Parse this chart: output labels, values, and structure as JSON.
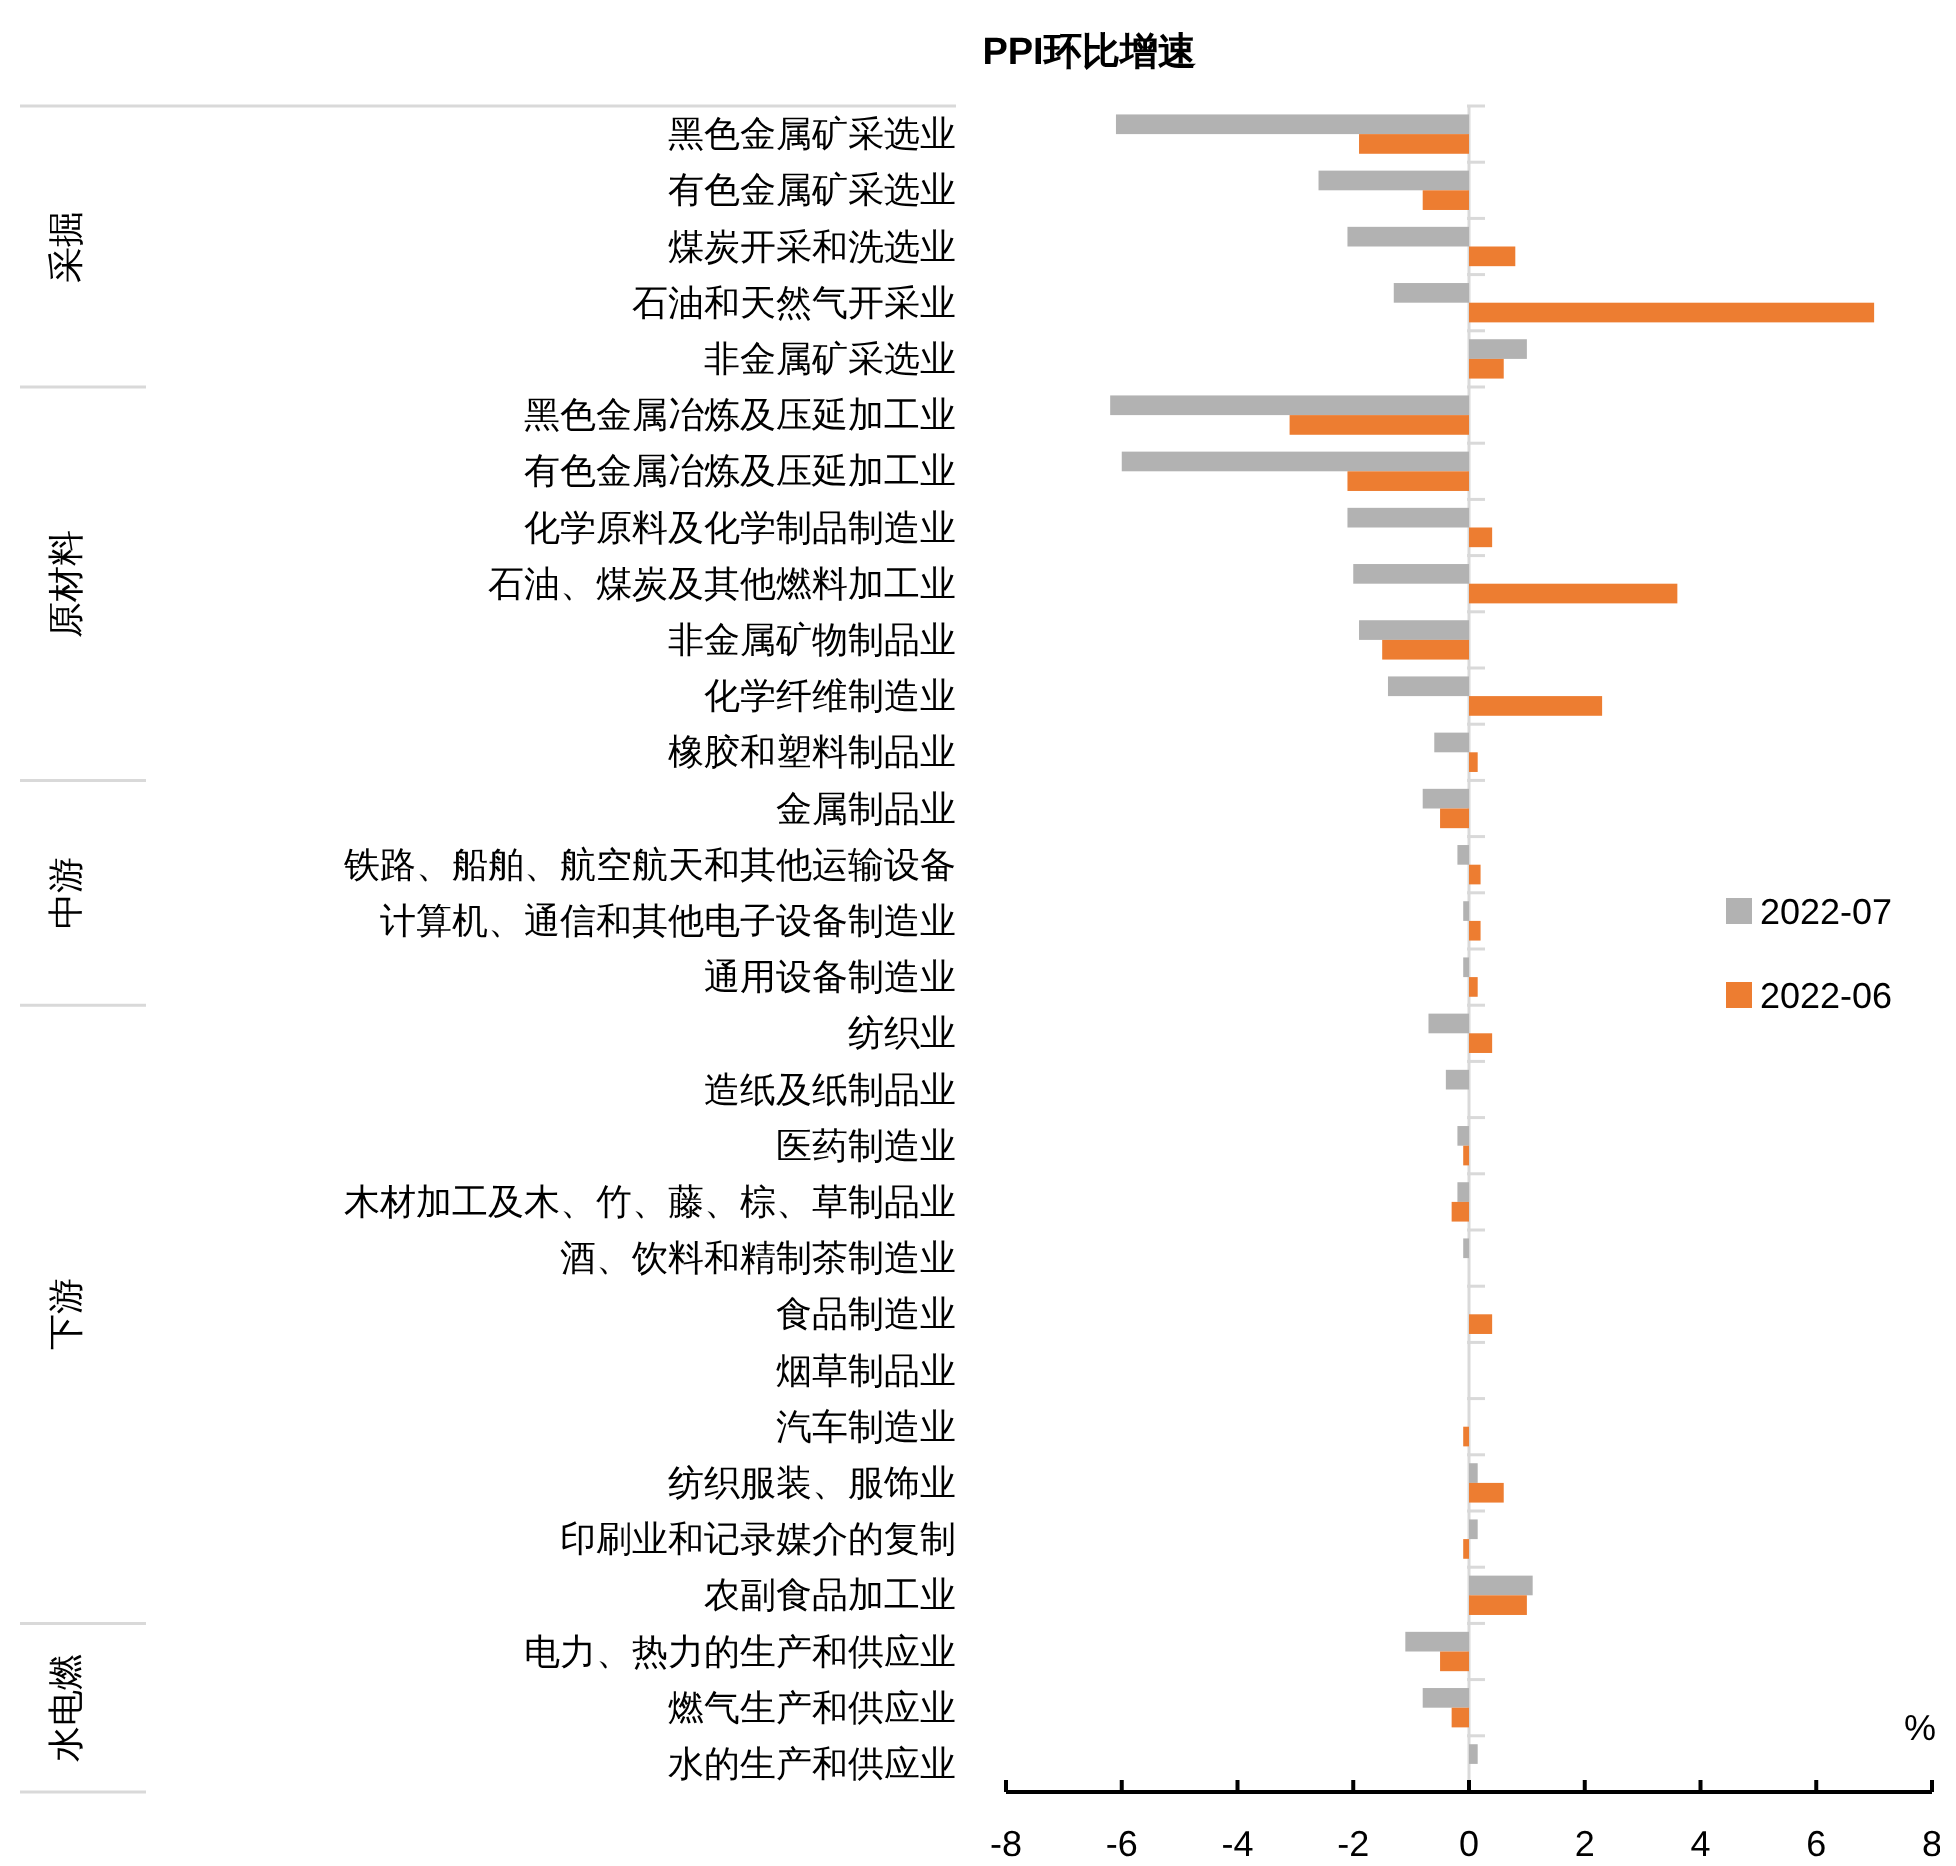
{
  "chart_data": {
    "type": "bar",
    "orientation": "horizontal",
    "title": "PPI环比增速",
    "xlabel": "%",
    "categories": [
      "黑色金属矿采选业",
      "有色金属矿采选业",
      "煤炭开采和洗选业",
      "石油和天然气开采业",
      "非金属矿采选业",
      "黑色金属冶炼及压延加工业",
      "有色金属冶炼及压延加工业",
      "化学原料及化学制品制造业",
      "石油、煤炭及其他燃料加工业",
      "非金属矿物制品业",
      "化学纤维制造业",
      "橡胶和塑料制品业",
      "金属制品业",
      "铁路、船舶、航空航天和其他运输设备",
      "计算机、通信和其他电子设备制造业",
      "通用设备制造业",
      "纺织业",
      "造纸及纸制品业",
      "医药制造业",
      "木材加工及木、竹、藤、棕、草制品业",
      "酒、饮料和精制茶制造业",
      "食品制造业",
      "烟草制品业",
      "汽车制造业",
      "纺织服装、服饰业",
      "印刷业和记录媒介的复制",
      "农副食品加工业",
      "电力、热力的生产和供应业",
      "燃气生产和供应业",
      "水的生产和供应业"
    ],
    "series": [
      {
        "name": "2022-07",
        "color": "#b2b2b2",
        "values": [
          -6.1,
          -2.6,
          -2.1,
          -1.3,
          1.0,
          -6.2,
          -6.0,
          -2.1,
          -2.0,
          -1.9,
          -1.4,
          -0.6,
          -0.8,
          -0.2,
          -0.1,
          -0.1,
          -0.7,
          -0.4,
          -0.2,
          -0.2,
          -0.1,
          0,
          0,
          0,
          0.15,
          0.15,
          1.1,
          -1.1,
          -0.8,
          0.15
        ]
      },
      {
        "name": "2022-06",
        "color": "#ed7d31",
        "values": [
          -1.9,
          -0.8,
          0.8,
          7.0,
          0.6,
          -3.1,
          -2.1,
          0.4,
          3.6,
          -1.5,
          2.3,
          0.15,
          -0.5,
          0.2,
          0.2,
          0.15,
          0.4,
          0,
          -0.1,
          -0.3,
          0,
          0.4,
          0,
          -0.1,
          0.6,
          -0.1,
          1.0,
          -0.5,
          -0.3,
          0
        ]
      }
    ],
    "xlim": [
      -8,
      8
    ],
    "xticks": [
      -8,
      -6,
      -4,
      -2,
      0,
      2,
      4,
      6,
      8
    ],
    "legend": "right",
    "grid": false,
    "ref_lines": [
      {
        "axis": "x",
        "value": 0,
        "color": "#d9d9d9"
      }
    ],
    "annotations": [
      "采掘",
      "原材料",
      "中游",
      "下游",
      "水电燃"
    ]
  }
}
